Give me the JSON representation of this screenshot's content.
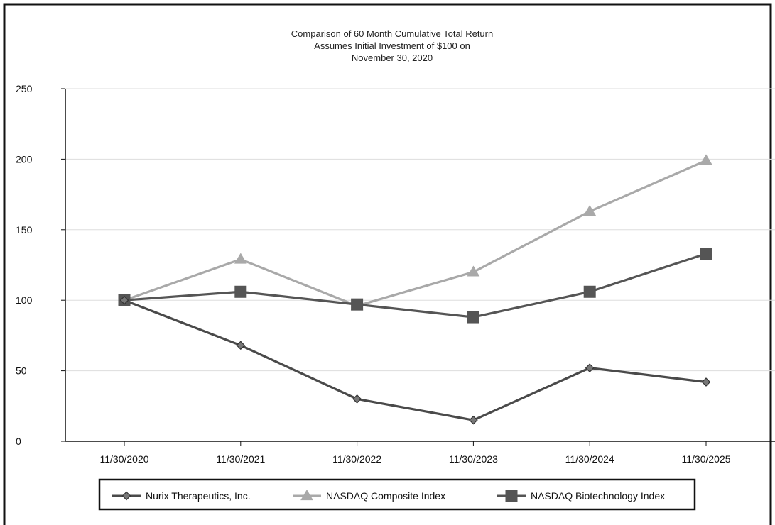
{
  "chart_data": {
    "type": "line",
    "title": [
      "Comparison of 60 Month Cumulative Total Return",
      "Assumes Initial Investment of $100 on",
      "November 30, 2020"
    ],
    "xlabel": "",
    "ylabel": "",
    "categories": [
      "11/30/2020",
      "11/30/2021",
      "11/30/2022",
      "11/30/2023",
      "11/30/2024",
      "11/30/2025"
    ],
    "ylim": [
      0,
      250
    ],
    "yticks": [
      0,
      50,
      100,
      150,
      200,
      250
    ],
    "grid": true,
    "legend_position": "bottom",
    "series": [
      {
        "name": "Nurix Therapeutics, Inc.",
        "values": [
          100,
          68,
          30,
          15,
          52,
          42
        ],
        "color": "#4a4a4a",
        "marker": "diamond"
      },
      {
        "name": "NASDAQ Composite Index",
        "values": [
          100,
          129,
          96,
          120,
          163,
          199
        ],
        "color": "#a9a9a9",
        "marker": "triangle"
      },
      {
        "name": "NASDAQ Biotechnology Index",
        "values": [
          100,
          106,
          97,
          88,
          106,
          133
        ],
        "color": "#555555",
        "marker": "square"
      }
    ]
  }
}
